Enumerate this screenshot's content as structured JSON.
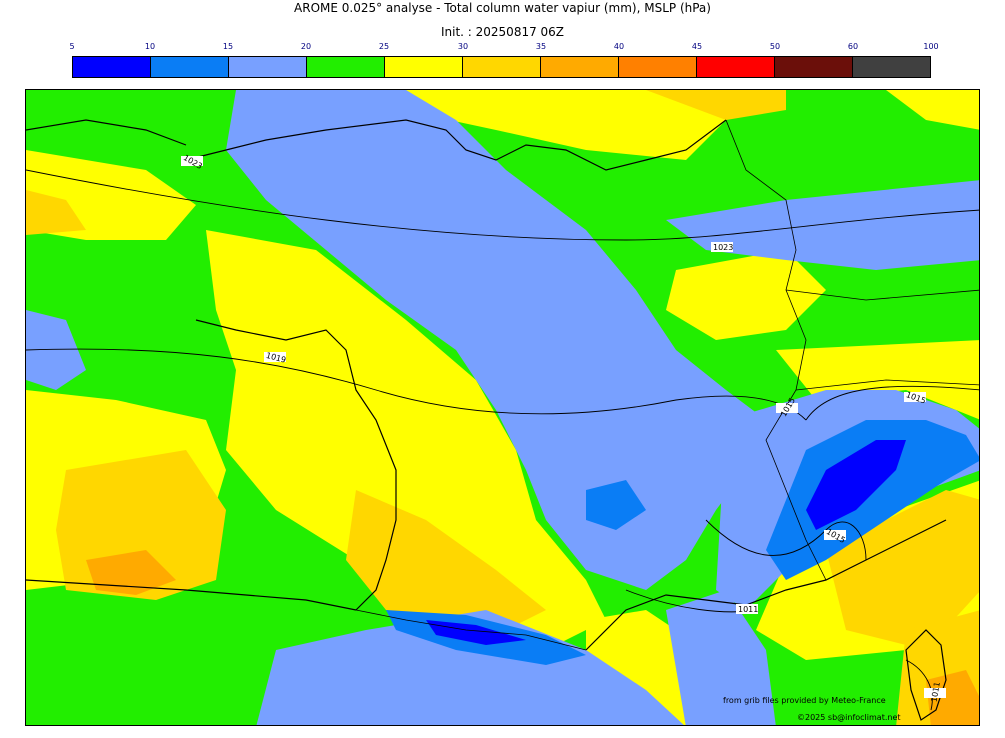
{
  "header": {
    "title": "AROME 0.025° analyse - Total column water vapiur (mm), MSLP (hPa)",
    "init": "Init. : 20250817 06Z"
  },
  "colorbar": {
    "ticks": [
      "5",
      "10",
      "15",
      "20",
      "25",
      "30",
      "35",
      "40",
      "45",
      "50",
      "60",
      "100"
    ],
    "colors": [
      "#0000ff",
      "#0a7df5",
      "#78a0ff",
      "#22ee00",
      "#ffff00",
      "#ffd700",
      "#ffaa00",
      "#ff8000",
      "#ff0000",
      "#6b0f0a",
      "#404040"
    ]
  },
  "isobars": {
    "labels": [
      "1023",
      "1023",
      "1019",
      "1015",
      "1015",
      "1015",
      "1011",
      "1011"
    ]
  },
  "credits": {
    "line1": "from grib files provided by Meteo-France",
    "line2": "©2025 sb@infoclimat.net"
  }
}
